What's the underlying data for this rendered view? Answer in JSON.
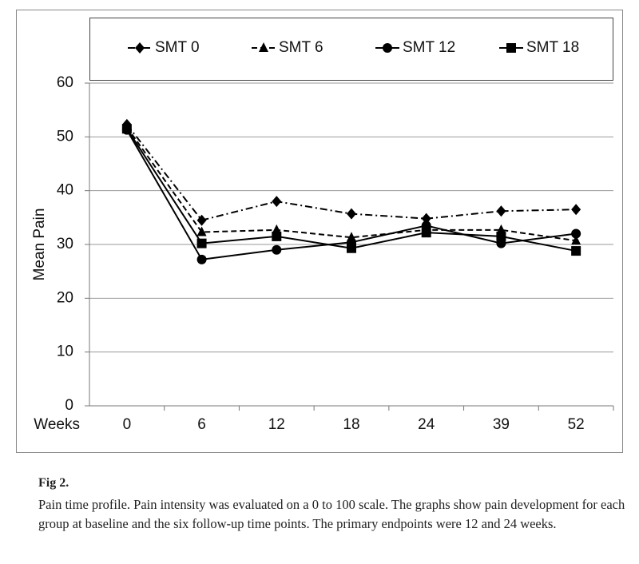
{
  "chart_data": {
    "type": "line",
    "x_label": "Weeks",
    "y_label": "Mean Pain",
    "categories": [
      "0",
      "6",
      "12",
      "18",
      "24",
      "39",
      "52"
    ],
    "series": [
      {
        "name": "SMT 0",
        "color": "#000000",
        "marker": "diamond",
        "dash": "dashdot",
        "values": [
          52.3,
          34.5,
          38,
          35.7,
          34.8,
          36.2,
          36.5
        ]
      },
      {
        "name": "SMT 6",
        "color": "#000000",
        "marker": "triangle",
        "dash": "dashed",
        "values": [
          51.8,
          32.3,
          32.7,
          31.3,
          32.7,
          32.7,
          30.7
        ]
      },
      {
        "name": "SMT 12",
        "color": "#000000",
        "marker": "circle",
        "dash": "solid",
        "values": [
          51.3,
          27.2,
          29,
          30.4,
          33.5,
          30.2,
          32
        ]
      },
      {
        "name": "SMT 18",
        "color": "#000000",
        "marker": "square",
        "dash": "solid",
        "values": [
          51.5,
          30.2,
          31.5,
          29.3,
          32.2,
          31.5,
          28.8
        ]
      }
    ],
    "ylim": [
      0,
      60
    ],
    "yticks": [
      0,
      10,
      20,
      30,
      40,
      50,
      60
    ],
    "grid": true,
    "legend": "top"
  },
  "caption": {
    "title": "Fig 2.",
    "text": "Pain time profile. Pain intensity was evaluated on a 0 to 100 scale. The graphs show pain development for each group at baseline and the six follow-up time points. The primary endpoints were 12 and 24 weeks."
  }
}
